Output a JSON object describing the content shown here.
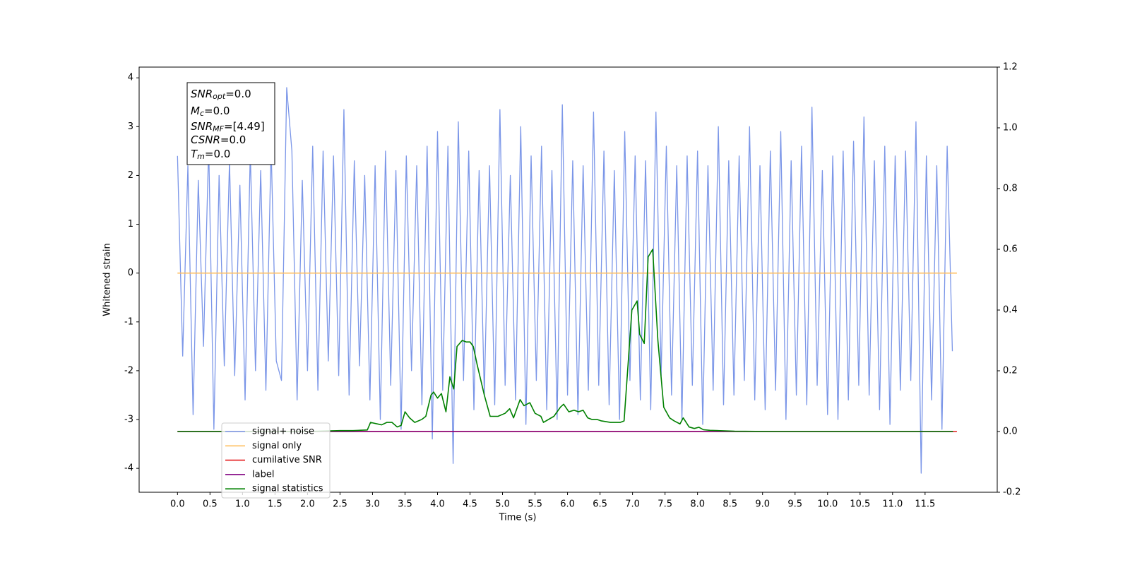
{
  "chart_data": {
    "type": "line",
    "xlabel": "Time (s)",
    "ylabel": "Whitened strain",
    "xlim": [
      -0.59,
      12.61
    ],
    "ylim": [
      -4.49,
      4.22
    ],
    "y2lim": [
      -0.2,
      1.2
    ],
    "xticks": [
      {
        "value": 0,
        "label": "0.0"
      },
      0.5,
      {
        "value": 1,
        "label": "1.0"
      },
      1.5,
      {
        "value": 2,
        "label": "2.0"
      },
      2.5,
      {
        "value": 3,
        "label": "3.0"
      },
      3.5,
      {
        "value": 4,
        "label": "4.0"
      },
      4.5,
      {
        "value": 5,
        "label": "5.0"
      },
      5.5,
      {
        "value": 6,
        "label": "6.0"
      },
      6.5,
      {
        "value": 7,
        "label": "7.0"
      },
      7.5,
      {
        "value": 8,
        "label": "8.0"
      },
      8.5,
      {
        "value": 9,
        "label": "9.0"
      },
      9.5,
      {
        "value": 10,
        "label": "10.0"
      },
      10.5,
      {
        "value": 11,
        "label": "11.0"
      },
      11.5
    ],
    "yticks": [
      -4,
      -3,
      -2,
      -1,
      0,
      1,
      2,
      3,
      4
    ],
    "y2ticks": [
      -0.2,
      {
        "value": 0,
        "label": "0.0"
      },
      0.2,
      0.4,
      0.6,
      0.8,
      {
        "value": 1,
        "label": "1.0"
      },
      1.2
    ],
    "legend": "lower left",
    "annotations": [
      {
        "symbol": "SNR",
        "subscript": "opt",
        "text": "=0.0"
      },
      {
        "symbol": "M",
        "subscript": "c",
        "text": "=0.0"
      },
      {
        "symbol": "SNR",
        "subscript": "MF",
        "text": "=[4.49]"
      },
      {
        "symbol": "CSNR",
        "text": "=0.0"
      },
      {
        "symbol": "T",
        "subscript": "m",
        "text": "=0.0"
      }
    ],
    "series": [
      {
        "name": "signal+ noise",
        "color": "#7b96e8",
        "x": [
          0,
          0.08,
          0.16,
          0.24,
          0.32,
          0.4,
          0.48,
          0.56,
          0.64,
          0.72,
          0.8,
          0.88,
          0.96,
          1.04,
          1.12,
          1.2,
          1.28,
          1.36,
          1.44,
          1.52,
          1.6,
          1.68,
          1.76,
          1.84,
          1.92,
          2,
          2.08,
          2.16,
          2.24,
          2.32,
          2.4,
          2.48,
          2.56,
          2.64,
          2.72,
          2.8,
          2.88,
          2.96,
          3.04,
          3.12,
          3.2,
          3.28,
          3.36,
          3.44,
          3.52,
          3.6,
          3.68,
          3.76,
          3.84,
          3.92,
          4,
          4.08,
          4.16,
          4.24,
          4.32,
          4.4,
          4.48,
          4.56,
          4.64,
          4.72,
          4.8,
          4.88,
          4.96,
          5.04,
          5.12,
          5.2,
          5.28,
          5.36,
          5.44,
          5.52,
          5.6,
          5.68,
          5.76,
          5.84,
          5.92,
          6,
          6.08,
          6.16,
          6.24,
          6.32,
          6.4,
          6.48,
          6.56,
          6.64,
          6.72,
          6.8,
          6.88,
          6.96,
          7.04,
          7.12,
          7.2,
          7.28,
          7.36,
          7.44,
          7.52,
          7.6,
          7.68,
          7.76,
          7.84,
          7.92,
          8,
          8.08,
          8.16,
          8.24,
          8.32,
          8.4,
          8.48,
          8.56,
          8.64,
          8.72,
          8.8,
          8.88,
          8.96,
          9.04,
          9.12,
          9.2,
          9.28,
          9.36,
          9.44,
          9.52,
          9.6,
          9.68,
          9.76,
          9.84,
          9.92,
          10,
          10.08,
          10.16,
          10.24,
          10.32,
          10.4,
          10.48,
          10.56,
          10.64,
          10.72,
          10.8,
          10.88,
          10.96,
          11.04,
          11.12,
          11.2,
          11.28,
          11.36,
          11.44,
          11.52,
          11.6,
          11.68,
          11.76,
          11.84,
          11.92
        ],
        "values": [
          2.4,
          -1.7,
          2.2,
          -2.9,
          1.9,
          -1.5,
          2.6,
          -3.2,
          2.0,
          -1.9,
          2.3,
          -2.1,
          1.8,
          -2.6,
          2.5,
          -2.0,
          2.1,
          -2.4,
          2.6,
          -1.8,
          -2.2,
          3.8,
          2.5,
          -2.6,
          1.9,
          -2.0,
          2.6,
          -2.4,
          2.5,
          -1.8,
          2.4,
          -2.1,
          3.35,
          -2.5,
          2.3,
          -1.9,
          2.0,
          -2.6,
          2.2,
          -3.0,
          2.5,
          -2.3,
          2.1,
          -3.2,
          2.4,
          -2.0,
          2.2,
          -2.7,
          2.6,
          -3.4,
          2.9,
          -2.4,
          2.6,
          -3.9,
          3.1,
          -2.2,
          2.5,
          -2.8,
          2.1,
          -2.5,
          2.2,
          -2.7,
          3.35,
          -2.3,
          2.0,
          -2.6,
          3.0,
          -3.1,
          2.4,
          -2.2,
          2.6,
          -2.8,
          2.1,
          -3.0,
          3.45,
          -2.5,
          2.3,
          -2.9,
          2.2,
          -2.4,
          3.3,
          -2.3,
          2.5,
          -2.7,
          2.1,
          -3.0,
          2.9,
          -2.2,
          2.4,
          -2.6,
          2.3,
          -2.8,
          3.3,
          -2.1,
          2.6,
          -2.5,
          2.2,
          -3.0,
          2.4,
          -2.3,
          2.5,
          -3.1,
          2.2,
          -2.4,
          3.0,
          -2.7,
          2.3,
          -2.5,
          2.4,
          -2.2,
          3.0,
          -2.6,
          2.2,
          -2.8,
          2.5,
          -2.4,
          2.9,
          -3.0,
          2.3,
          -2.5,
          2.6,
          -2.7,
          3.4,
          -2.3,
          2.1,
          -2.9,
          2.4,
          -3.0,
          2.5,
          -2.6,
          2.7,
          -2.3,
          3.2,
          -2.5,
          2.3,
          -2.8,
          2.6,
          -3.1,
          2.4,
          -2.4,
          2.5,
          -2.2,
          3.1,
          -4.1,
          2.4,
          -2.6,
          2.2,
          -3.2,
          2.6,
          -1.6
        ]
      },
      {
        "name": "signal only",
        "color": "#ffbf60",
        "x": [
          0,
          11.99
        ],
        "values": [
          0,
          0
        ]
      },
      {
        "name": "cumilative SNR",
        "color": "#e41a1c",
        "axis": "y2",
        "x": [
          0,
          11.99
        ],
        "values": [
          0,
          0
        ]
      },
      {
        "name": "label",
        "color": "#800080",
        "axis": "y2",
        "x": [
          0,
          11.93
        ],
        "values": [
          0,
          0
        ]
      },
      {
        "name": "signal statistics",
        "color": "#008000",
        "axis": "y2",
        "x": [
          0,
          2.0,
          2.3,
          2.5,
          2.7,
          2.92,
          2.97,
          3.14,
          3.22,
          3.3,
          3.38,
          3.44,
          3.5,
          3.57,
          3.65,
          3.76,
          3.82,
          3.9,
          3.94,
          4.0,
          4.06,
          4.13,
          4.19,
          4.25,
          4.3,
          4.38,
          4.44,
          4.5,
          4.55,
          4.61,
          4.72,
          4.81,
          4.93,
          5.04,
          5.11,
          5.17,
          5.27,
          5.33,
          5.42,
          5.5,
          5.59,
          5.63,
          5.79,
          5.89,
          5.94,
          6.02,
          6.1,
          6.17,
          6.24,
          6.31,
          6.37,
          6.45,
          6.52,
          6.66,
          6.74,
          6.81,
          6.87,
          6.99,
          7.07,
          7.11,
          7.18,
          7.24,
          7.31,
          7.39,
          7.48,
          7.57,
          7.64,
          7.73,
          7.78,
          7.87,
          7.95,
          8.02,
          8.09,
          8.19,
          8.57,
          9.22,
          11.93
        ],
        "values": [
          0,
          0,
          0.002,
          0.003,
          0.003,
          0.005,
          0.03,
          0.022,
          0.03,
          0.03,
          0.015,
          0.02,
          0.065,
          0.045,
          0.03,
          0.04,
          0.05,
          0.12,
          0.13,
          0.11,
          0.125,
          0.065,
          0.18,
          0.14,
          0.28,
          0.3,
          0.295,
          0.295,
          0.28,
          0.22,
          0.12,
          0.05,
          0.05,
          0.06,
          0.075,
          0.045,
          0.105,
          0.085,
          0.095,
          0.06,
          0.05,
          0.03,
          0.05,
          0.08,
          0.09,
          0.065,
          0.07,
          0.065,
          0.07,
          0.045,
          0.04,
          0.04,
          0.035,
          0.03,
          0.03,
          0.03,
          0.035,
          0.4,
          0.43,
          0.32,
          0.29,
          0.575,
          0.6,
          0.3,
          0.08,
          0.045,
          0.035,
          0.025,
          0.045,
          0.015,
          0.01,
          0.014,
          0.006,
          0.004,
          0.001,
          0,
          0
        ]
      }
    ]
  }
}
